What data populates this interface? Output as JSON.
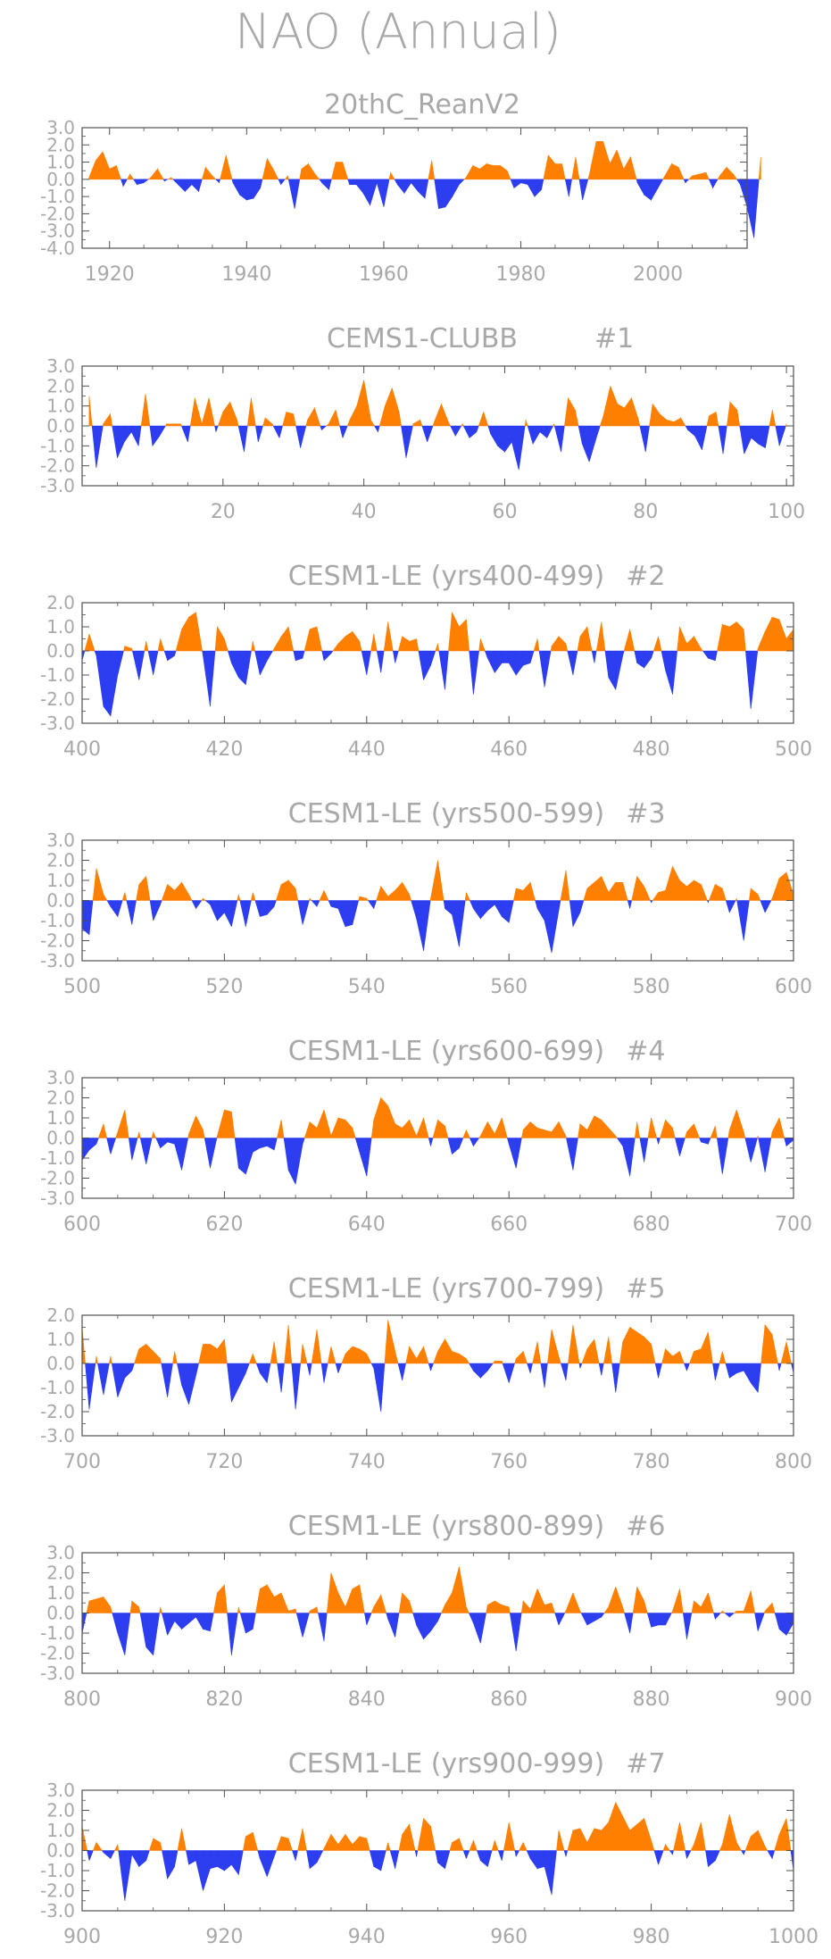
{
  "title": "NAO (Annual)",
  "colors": {
    "positive": "#ff8000",
    "negative": "#2d3df0",
    "axis": "#505050",
    "text": "#a8a8a8"
  },
  "chart_data": [
    {
      "type": "area",
      "title": "20thC_ReanV2",
      "xlim": [
        1916,
        2013
      ],
      "ylim": [
        -4.0,
        3.0
      ],
      "yticks": [
        "3.0",
        "2.0",
        "1.0",
        "0.0",
        "-1.0",
        "-2.0",
        "-3.0",
        "-4.0"
      ],
      "xticks": [
        "1920",
        "1940",
        "1960",
        "1980",
        "2000"
      ],
      "x_start": 1917,
      "x_step": 1,
      "values": [
        0.1,
        1.1,
        1.6,
        0.6,
        0.8,
        -0.4,
        0.3,
        -0.3,
        -0.2,
        0.1,
        0.6,
        -0.1,
        0.1,
        -0.3,
        -0.7,
        -0.3,
        -0.7,
        0.7,
        0.2,
        -0.2,
        1.4,
        -0.2,
        -0.9,
        -1.2,
        -1.1,
        -0.5,
        1.2,
        0.5,
        -0.3,
        0.2,
        -1.7,
        0.6,
        0.9,
        0.3,
        -0.2,
        -0.6,
        1.0,
        1.0,
        -0.3,
        -0.3,
        -0.8,
        -1.5,
        -0.2,
        -1.6,
        0.4,
        -0.3,
        -0.8,
        -0.2,
        -0.7,
        -1.1,
        1.1,
        -1.7,
        -1.6,
        -1.0,
        -0.3,
        0.1,
        0.8,
        0.6,
        0.9,
        0.8,
        0.8,
        0.5,
        -0.5,
        -0.2,
        -0.3,
        -1.0,
        -0.6,
        1.4,
        0.9,
        0.9,
        -1.0,
        1.3,
        -1.2,
        0.3,
        2.2,
        2.2,
        0.9,
        1.7,
        0.6,
        1.3,
        -0.2,
        -0.9,
        -1.2,
        -0.5,
        0.2,
        0.9,
        0.7,
        -0.2,
        0.2,
        0.3,
        0.4,
        -0.5,
        0.2,
        0.7,
        0.3,
        -0.3,
        -1.6,
        -3.4,
        1.3
      ]
    },
    {
      "type": "area",
      "title": "CEMS1-CLUBB",
      "run_label": "#1",
      "xlim": [
        0,
        101
      ],
      "ylim": [
        -3.0,
        3.0
      ],
      "yticks": [
        "3.0",
        "2.0",
        "1.0",
        "0.0",
        "-1.0",
        "-2.0",
        "-3.0"
      ],
      "xticks": [
        "20",
        "40",
        "60",
        "80",
        "100"
      ],
      "x_start": 1,
      "x_step": 1,
      "values": [
        1.5,
        -2.1,
        0.1,
        0.6,
        -1.6,
        -0.8,
        -0.3,
        -1.0,
        1.6,
        -1.0,
        -0.5,
        0.1,
        0.1,
        0.1,
        -0.8,
        1.4,
        0.1,
        1.4,
        -0.3,
        0.7,
        1.2,
        0.3,
        -1.3,
        1.4,
        -0.8,
        0.4,
        0.1,
        -0.6,
        0.7,
        0.6,
        -1.1,
        0.3,
        0.9,
        -0.2,
        0.1,
        0.8,
        -0.6,
        0.3,
        1.0,
        2.3,
        0.3,
        -0.3,
        1.0,
        1.9,
        0.7,
        -1.6,
        0.1,
        0.3,
        -0.8,
        0.2,
        1.1,
        0.2,
        -0.5,
        0.1,
        -0.6,
        -0.3,
        0.7,
        -0.4,
        -1.0,
        -1.3,
        -0.8,
        -2.2,
        0.3,
        -0.9,
        -0.3,
        -0.6,
        0.1,
        -1.3,
        1.4,
        0.8,
        -0.9,
        -1.8,
        -0.6,
        0.5,
        2.0,
        1.1,
        0.9,
        1.4,
        0.3,
        -1.3,
        1.1,
        0.6,
        0.3,
        0.2,
        0.4,
        -0.2,
        -0.5,
        -1.2,
        0.5,
        0.7,
        -1.4,
        1.2,
        0.8,
        -1.4,
        -0.6,
        -0.9,
        -1.1,
        0.8,
        -1.0,
        0.1
      ]
    },
    {
      "type": "area",
      "title": "CESM1-LE (yrs400-499)",
      "run_label": "#2",
      "xlim": [
        400,
        500
      ],
      "ylim": [
        -3.0,
        2.0
      ],
      "yticks": [
        "2.0",
        "1.0",
        "0.0",
        "-1.0",
        "-2.0",
        "-3.0"
      ],
      "xticks": [
        "400",
        "420",
        "440",
        "460",
        "480",
        "500"
      ],
      "x_start": 400,
      "x_step": 1,
      "values": [
        -0.4,
        0.7,
        -0.2,
        -2.3,
        -2.7,
        -1.0,
        0.2,
        0.1,
        -1.2,
        0.4,
        -1.0,
        0.5,
        -0.4,
        -0.2,
        0.9,
        1.4,
        1.6,
        -0.2,
        -2.3,
        1.0,
        0.5,
        -0.5,
        -1.1,
        -1.4,
        0.4,
        -1.0,
        -0.4,
        0.1,
        0.6,
        1.0,
        -0.4,
        -0.3,
        0.9,
        1.0,
        -0.4,
        -0.1,
        0.3,
        0.6,
        0.8,
        0.4,
        -1.0,
        0.7,
        -0.9,
        1.2,
        -0.5,
        0.6,
        0.4,
        0.5,
        -1.2,
        -0.6,
        0.3,
        -1.6,
        1.6,
        1.0,
        1.3,
        -1.8,
        0.5,
        -0.3,
        -0.9,
        -0.5,
        -0.5,
        -1.0,
        -0.6,
        -0.5,
        0.5,
        -1.5,
        0.2,
        0.6,
        0.3,
        -1.0,
        0.6,
        1.0,
        -0.5,
        1.2,
        -1.1,
        -1.6,
        -0.2,
        0.9,
        -0.5,
        -0.7,
        -0.3,
        0.6,
        -0.8,
        -1.8,
        1.0,
        0.3,
        0.6,
        0.1,
        -0.3,
        -0.4,
        1.1,
        1.0,
        1.2,
        0.9,
        -2.4,
        0.1,
        0.8,
        1.4,
        1.3,
        0.5,
        0.9
      ]
    },
    {
      "type": "area",
      "title": "CESM1-LE (yrs500-599)",
      "run_label": "#3",
      "xlim": [
        500,
        600
      ],
      "ylim": [
        -3.0,
        3.0
      ],
      "yticks": [
        "3.0",
        "2.0",
        "1.0",
        "0.0",
        "-1.0",
        "-2.0",
        "-3.0"
      ],
      "xticks": [
        "500",
        "520",
        "540",
        "560",
        "580",
        "600"
      ],
      "x_start": 500,
      "x_step": 1,
      "values": [
        -1.4,
        -1.7,
        1.6,
        0.3,
        -0.3,
        -0.8,
        0.4,
        -1.2,
        0.8,
        1.2,
        -1.0,
        -0.2,
        0.8,
        0.5,
        0.9,
        0.3,
        -0.4,
        0.1,
        -0.2,
        -1.0,
        -0.6,
        -1.3,
        0.3,
        -1.3,
        0.4,
        -0.8,
        -0.7,
        -0.3,
        0.8,
        1.0,
        0.6,
        -1.2,
        0.1,
        -0.3,
        0.5,
        -0.3,
        -0.4,
        -1.3,
        -1.2,
        0.2,
        0.1,
        -0.4,
        0.7,
        0.2,
        0.5,
        0.9,
        0.3,
        -0.9,
        -2.5,
        0.1,
        2.0,
        -0.4,
        -0.7,
        -2.3,
        0.4,
        -0.4,
        -0.9,
        -0.5,
        -0.2,
        -0.8,
        -1.1,
        0.6,
        0.5,
        0.9,
        -0.4,
        -1.0,
        -2.6,
        -0.5,
        1.5,
        -1.3,
        -0.6,
        0.6,
        0.9,
        1.2,
        0.4,
        0.9,
        0.9,
        -0.4,
        1.2,
        0.7,
        -0.1,
        0.4,
        0.5,
        1.7,
        1.0,
        0.7,
        1.0,
        0.8,
        -0.1,
        0.8,
        0.6,
        -0.6,
        0.1,
        -2.0,
        0.6,
        0.3,
        -0.6,
        0.1,
        1.1,
        1.4,
        0.3
      ]
    },
    {
      "type": "area",
      "title": "CESM1-LE (yrs600-699)",
      "run_label": "#4",
      "xlim": [
        600,
        700
      ],
      "ylim": [
        -3.0,
        3.0
      ],
      "yticks": [
        "3.0",
        "2.0",
        "1.0",
        "0.0",
        "-1.0",
        "-2.0",
        "-3.0"
      ],
      "xticks": [
        "600",
        "620",
        "640",
        "660",
        "680",
        "700"
      ],
      "x_start": 600,
      "x_step": 1,
      "values": [
        -1.1,
        -0.6,
        -0.3,
        0.7,
        -0.8,
        0.3,
        1.4,
        -1.1,
        0.3,
        -1.3,
        0.3,
        -0.5,
        -0.2,
        -0.3,
        -1.6,
        0.2,
        1.1,
        0.4,
        -1.5,
        0.1,
        1.4,
        1.3,
        -1.5,
        -1.8,
        -0.7,
        -0.5,
        -0.4,
        -0.6,
        0.9,
        -1.6,
        -2.3,
        -0.3,
        0.8,
        0.5,
        1.4,
        0.1,
        1.0,
        0.9,
        0.5,
        -0.7,
        -1.9,
        0.9,
        2.0,
        1.6,
        0.7,
        0.5,
        0.9,
        0.1,
        1.0,
        -0.4,
        0.9,
        0.6,
        -0.8,
        -0.5,
        0.4,
        -0.4,
        0.1,
        0.8,
        0.2,
        1.0,
        -0.3,
        -1.5,
        0.4,
        0.8,
        0.5,
        0.4,
        0.3,
        0.8,
        0.1,
        -1.6,
        0.7,
        0.4,
        1.1,
        0.9,
        0.5,
        0.1,
        -0.4,
        -1.9,
        0.8,
        -1.2,
        1.0,
        -0.3,
        0.9,
        0.5,
        -0.9,
        0.3,
        0.7,
        -0.2,
        -0.3,
        0.6,
        -1.8,
        0.4,
        1.4,
        0.3,
        -1.2,
        0.1,
        -1.7,
        0.3,
        1.0,
        -0.4,
        -0.1
      ]
    },
    {
      "type": "area",
      "title": "CESM1-LE (yrs700-799)",
      "run_label": "#5",
      "xlim": [
        700,
        800
      ],
      "ylim": [
        -3.0,
        2.0
      ],
      "yticks": [
        "2.0",
        "1.0",
        "0.0",
        "-1.0",
        "-2.0",
        "-3.0"
      ],
      "xticks": [
        "700",
        "720",
        "740",
        "760",
        "780",
        "800"
      ],
      "x_start": 700,
      "x_step": 1,
      "values": [
        1.5,
        -1.9,
        0.3,
        -1.3,
        0.3,
        -1.4,
        -0.6,
        -0.3,
        0.6,
        0.8,
        0.5,
        0.2,
        -1.4,
        0.5,
        -0.9,
        -1.7,
        -0.5,
        0.8,
        0.8,
        0.6,
        1.0,
        -1.6,
        -1.0,
        -0.4,
        0.4,
        -0.4,
        -0.8,
        0.9,
        -1.2,
        1.6,
        -1.9,
        0.8,
        -0.5,
        1.4,
        -0.8,
        0.7,
        -0.4,
        0.4,
        0.7,
        0.6,
        0.4,
        -0.2,
        -2.0,
        1.8,
        0.5,
        -0.7,
        0.7,
        0.2,
        0.7,
        -0.3,
        0.5,
        1.0,
        0.5,
        0.4,
        0.2,
        -0.3,
        -0.6,
        -0.3,
        0.1,
        0.1,
        -0.8,
        0.2,
        0.5,
        -0.4,
        0.9,
        -1.0,
        1.4,
        0.3,
        -0.7,
        1.6,
        -0.2,
        0.6,
        1.0,
        -0.5,
        1.1,
        -1.2,
        0.9,
        1.5,
        1.3,
        1.1,
        0.8,
        -0.6,
        0.6,
        0.3,
        0.5,
        -0.3,
        0.5,
        0.6,
        1.3,
        -0.7,
        0.5,
        -0.6,
        -0.4,
        -0.3,
        -0.8,
        -1.2,
        1.6,
        1.2,
        -0.3,
        0.9,
        -0.4
      ]
    },
    {
      "type": "area",
      "title": "CESM1-LE (yrs800-899)",
      "run_label": "#6",
      "xlim": [
        800,
        900
      ],
      "ylim": [
        -3.0,
        3.0
      ],
      "yticks": [
        "3.0",
        "2.0",
        "1.0",
        "0.0",
        "-1.0",
        "-2.0",
        "-3.0"
      ],
      "xticks": [
        "800",
        "820",
        "840",
        "860",
        "880",
        "900"
      ],
      "x_start": 800,
      "x_step": 1,
      "values": [
        -1.0,
        0.6,
        0.7,
        0.8,
        0.3,
        -1.0,
        -2.1,
        0.6,
        0.3,
        -1.7,
        -2.1,
        0.3,
        -1.1,
        -0.4,
        -0.8,
        -0.5,
        -0.2,
        -0.8,
        -0.9,
        1.0,
        1.4,
        -2.1,
        0.3,
        -1.0,
        -0.8,
        1.2,
        1.4,
        0.8,
        1.0,
        0.1,
        0.2,
        -1.2,
        0.1,
        0.3,
        -1.4,
        2.0,
        1.0,
        0.3,
        1.2,
        1.4,
        -0.6,
        0.3,
        0.9,
        -0.3,
        -1.2,
        1.0,
        0.6,
        -0.6,
        -1.3,
        -0.9,
        -0.4,
        0.4,
        1.0,
        2.3,
        0.3,
        -0.5,
        -1.5,
        0.4,
        0.6,
        0.4,
        0.3,
        -1.9,
        0.6,
        0.2,
        1.2,
        0.4,
        0.5,
        -0.6,
        0.1,
        1.0,
        0.1,
        -0.6,
        -0.4,
        -0.2,
        0.3,
        1.3,
        0.3,
        -1.0,
        1.3,
        0.6,
        -0.7,
        -0.6,
        -0.6,
        0.1,
        1.2,
        -1.3,
        0.6,
        0.3,
        1.0,
        -0.3,
        0.1,
        -0.2,
        0.1,
        0.1,
        1.1,
        -0.9,
        0.1,
        0.5,
        -0.8,
        -1.1,
        -0.5
      ]
    },
    {
      "type": "area",
      "title": "CESM1-LE (yrs900-999)",
      "run_label": "#7",
      "xlim": [
        900,
        1000
      ],
      "ylim": [
        -3.0,
        3.0
      ],
      "yticks": [
        "3.0",
        "2.0",
        "1.0",
        "0.0",
        "-1.0",
        "-2.0",
        "-3.0"
      ],
      "xticks": [
        "900",
        "920",
        "940",
        "960",
        "980",
        "1000"
      ],
      "x_start": 900,
      "x_step": 1,
      "values": [
        1.2,
        -0.5,
        0.4,
        -0.1,
        -0.4,
        0.3,
        -2.5,
        -0.2,
        -0.8,
        -0.5,
        0.6,
        0.4,
        -1.4,
        -0.8,
        1.1,
        -0.7,
        -0.5,
        -2.0,
        -0.9,
        -0.8,
        -1.0,
        -0.7,
        -1.2,
        0.7,
        0.9,
        -0.4,
        -1.3,
        -0.3,
        0.7,
        0.6,
        -0.5,
        1.1,
        -0.9,
        -0.6,
        0.1,
        0.8,
        0.3,
        0.8,
        0.3,
        0.7,
        0.6,
        -0.8,
        -1.0,
        0.4,
        -0.9,
        0.8,
        1.3,
        -0.3,
        1.6,
        1.2,
        -0.6,
        -0.9,
        0.4,
        0.6,
        -0.4,
        0.5,
        -0.5,
        -0.8,
        0.5,
        -0.5,
        1.4,
        -0.3,
        0.4,
        -0.4,
        -0.9,
        -0.8,
        -2.2,
        1.0,
        -0.3,
        1.0,
        1.1,
        0.4,
        1.1,
        1.0,
        1.4,
        2.4,
        1.7,
        1.0,
        1.3,
        1.6,
        0.5,
        -0.7,
        0.3,
        -0.2,
        1.4,
        -0.4,
        0.3,
        1.4,
        -0.8,
        -0.5,
        0.3,
        1.8,
        0.4,
        -0.2,
        0.7,
        1.0,
        0.2,
        -0.4,
        0.8,
        1.6,
        -1.0
      ]
    }
  ]
}
